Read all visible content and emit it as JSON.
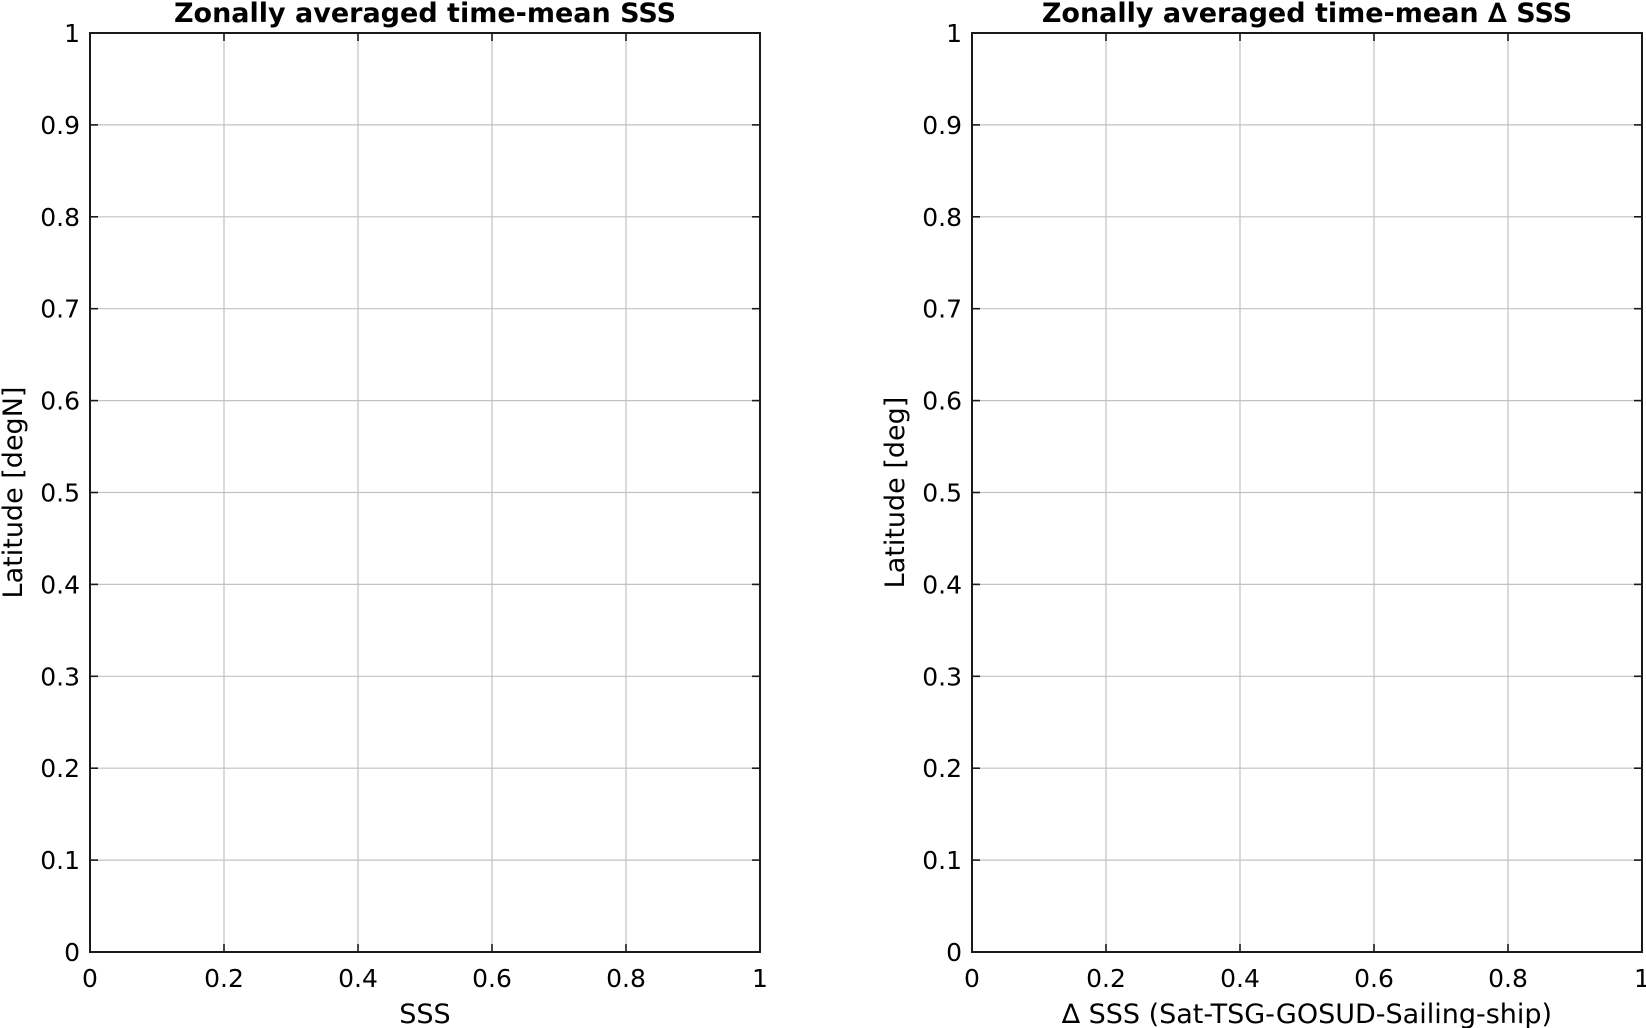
{
  "chart_data": [
    {
      "type": "line",
      "title": "Zonally averaged time-mean SSS",
      "xlabel": "SSS",
      "ylabel": "Latitude [degN]",
      "xlim": [
        0,
        1
      ],
      "ylim": [
        0,
        1
      ],
      "xticks": [
        0,
        0.2,
        0.4,
        0.6,
        0.8,
        1
      ],
      "yticks": [
        0,
        0.1,
        0.2,
        0.3,
        0.4,
        0.5,
        0.6,
        0.7,
        0.8,
        0.9,
        1
      ],
      "xtick_labels": [
        "0",
        "0.2",
        "0.4",
        "0.6",
        "0.8",
        "1"
      ],
      "ytick_labels": [
        "0",
        "0.1",
        "0.2",
        "0.3",
        "0.4",
        "0.5",
        "0.6",
        "0.7",
        "0.8",
        "0.9",
        "1"
      ],
      "grid": true,
      "series": []
    },
    {
      "type": "line",
      "title": "Zonally averaged time-mean ∆ SSS",
      "xlabel": "∆ SSS (Sat-TSG-GOSUD-Sailing-ship)",
      "ylabel": "Latitude [deg]",
      "xlim": [
        0,
        1
      ],
      "ylim": [
        0,
        1
      ],
      "xticks": [
        0,
        0.2,
        0.4,
        0.6,
        0.8,
        1
      ],
      "yticks": [
        0,
        0.1,
        0.2,
        0.3,
        0.4,
        0.5,
        0.6,
        0.7,
        0.8,
        0.9,
        1
      ],
      "xtick_labels": [
        "0",
        "0.2",
        "0.4",
        "0.6",
        "0.8",
        "1"
      ],
      "ytick_labels": [
        "0",
        "0.1",
        "0.2",
        "0.3",
        "0.4",
        "0.5",
        "0.6",
        "0.7",
        "0.8",
        "0.9",
        "1"
      ],
      "grid": true,
      "series": []
    }
  ]
}
